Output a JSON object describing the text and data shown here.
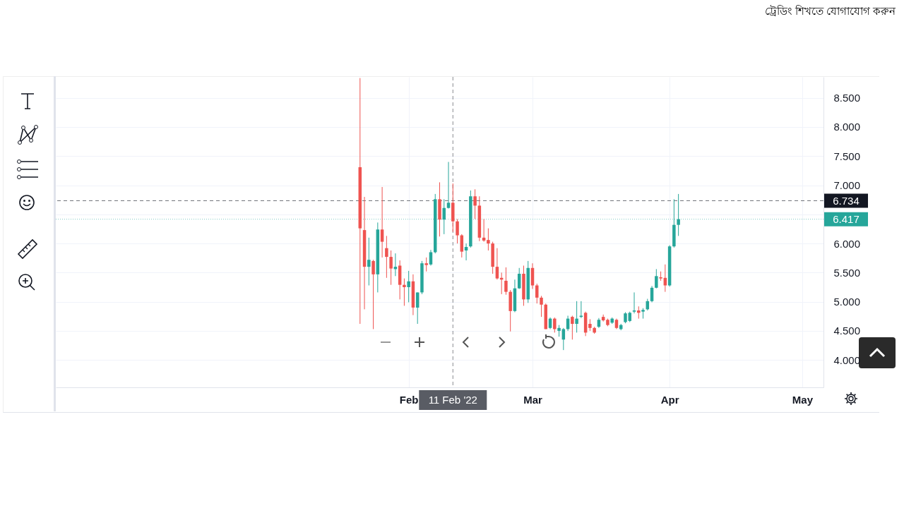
{
  "chart_data": {
    "type": "candlestick",
    "annotations": [
      "ট্রেডিং শিখতে যোগাযোগ করুন"
    ],
    "x": [
      "2022-01-21",
      "2022-01-22",
      "2022-01-23",
      "2022-01-24",
      "2022-01-25",
      "2022-01-26",
      "2022-01-27",
      "2022-01-28",
      "2022-01-29",
      "2022-01-30",
      "2022-01-31",
      "2022-02-01",
      "2022-02-02",
      "2022-02-03",
      "2022-02-04",
      "2022-02-05",
      "2022-02-06",
      "2022-02-07",
      "2022-02-08",
      "2022-02-09",
      "2022-02-10",
      "2022-02-11",
      "2022-02-12",
      "2022-02-13",
      "2022-02-14",
      "2022-02-15",
      "2022-02-16",
      "2022-02-17",
      "2022-02-18",
      "2022-02-19",
      "2022-02-20",
      "2022-02-21",
      "2022-02-22",
      "2022-02-23",
      "2022-02-24",
      "2022-02-25",
      "2022-02-26",
      "2022-02-27",
      "2022-02-28",
      "2022-03-01",
      "2022-03-02",
      "2022-03-03",
      "2022-03-04",
      "2022-03-05",
      "2022-03-06",
      "2022-03-07",
      "2022-03-08",
      "2022-03-09",
      "2022-03-10",
      "2022-03-11",
      "2022-03-12",
      "2022-03-13",
      "2022-03-14",
      "2022-03-15",
      "2022-03-16",
      "2022-03-17",
      "2022-03-18",
      "2022-03-19",
      "2022-03-20",
      "2022-03-21",
      "2022-03-22",
      "2022-03-23",
      "2022-03-24",
      "2022-03-25",
      "2022-03-26",
      "2022-03-27",
      "2022-03-28",
      "2022-03-29",
      "2022-03-30",
      "2022-03-31",
      "2022-04-01",
      "2022-04-02",
      "2022-04-03"
    ],
    "series": [
      {
        "ohlc": [
          [
            7.31,
            8.84,
            4.62,
            6.26
          ],
          [
            6.23,
            6.8,
            4.87,
            5.6
          ],
          [
            5.6,
            6.1,
            5.28,
            5.72
          ],
          [
            5.7,
            5.72,
            4.53,
            5.47
          ],
          [
            5.47,
            6.36,
            5.16,
            6.24
          ],
          [
            6.24,
            6.97,
            5.76,
            6.03
          ],
          [
            5.92,
            6.13,
            5.41,
            5.77
          ],
          [
            5.77,
            5.88,
            5.29,
            5.57
          ],
          [
            5.56,
            5.83,
            5.44,
            5.6
          ],
          [
            5.62,
            5.71,
            5.04,
            5.29
          ],
          [
            5.29,
            5.4,
            4.93,
            5.25
          ],
          [
            5.25,
            5.53,
            4.99,
            5.35
          ],
          [
            5.35,
            5.47,
            4.77,
            4.9
          ],
          [
            4.9,
            5.16,
            4.62,
            5.16
          ],
          [
            5.16,
            5.7,
            5.13,
            5.66
          ],
          [
            5.66,
            5.76,
            5.52,
            5.63
          ],
          [
            5.64,
            5.89,
            5.62,
            5.85
          ],
          [
            5.85,
            6.85,
            5.83,
            6.76
          ],
          [
            6.76,
            7.05,
            6.12,
            6.41
          ],
          [
            6.41,
            6.76,
            6.16,
            6.61
          ],
          [
            6.61,
            7.4,
            6.6,
            6.7
          ],
          [
            6.7,
            7.03,
            6.2,
            6.38
          ],
          [
            6.38,
            6.42,
            6.0,
            6.14
          ],
          [
            6.14,
            6.16,
            5.76,
            5.86
          ],
          [
            5.88,
            6.0,
            5.71,
            5.94
          ],
          [
            5.95,
            6.91,
            5.93,
            6.81
          ],
          [
            6.81,
            6.93,
            6.42,
            6.65
          ],
          [
            6.65,
            6.81,
            6.04,
            6.1
          ],
          [
            6.1,
            6.42,
            6.03,
            6.05
          ],
          [
            6.06,
            6.26,
            5.88,
            6.0
          ],
          [
            6.0,
            6.03,
            5.48,
            5.6
          ],
          [
            5.6,
            5.92,
            5.38,
            5.4
          ],
          [
            5.41,
            5.5,
            5.13,
            5.38
          ],
          [
            5.36,
            5.59,
            5.12,
            5.17
          ],
          [
            5.17,
            5.2,
            4.49,
            4.84
          ],
          [
            4.84,
            5.38,
            4.82,
            5.23
          ],
          [
            5.23,
            5.58,
            5.22,
            5.48
          ],
          [
            5.48,
            5.62,
            4.93,
            5.04
          ],
          [
            5.04,
            5.7,
            4.98,
            5.58
          ],
          [
            5.58,
            5.66,
            5.22,
            5.28
          ],
          [
            5.28,
            5.31,
            4.97,
            5.07
          ],
          [
            5.07,
            5.1,
            4.74,
            4.95
          ],
          [
            4.95,
            4.97,
            4.53,
            4.53
          ],
          [
            4.55,
            4.73,
            4.53,
            4.71
          ],
          [
            4.71,
            4.73,
            4.47,
            4.53
          ],
          [
            4.5,
            4.6,
            4.4,
            4.55
          ],
          [
            4.35,
            4.55,
            4.17,
            4.53
          ],
          [
            4.53,
            4.76,
            4.5,
            4.71
          ],
          [
            4.74,
            4.76,
            4.35,
            4.62
          ],
          [
            4.62,
            5.01,
            4.47,
            4.71
          ],
          [
            4.74,
            5.01,
            4.72,
            4.76
          ],
          [
            4.81,
            4.83,
            4.41,
            4.47
          ],
          [
            4.62,
            4.7,
            4.5,
            4.55
          ],
          [
            4.55,
            4.57,
            4.45,
            4.47
          ],
          [
            4.57,
            4.72,
            4.55,
            4.69
          ],
          [
            4.74,
            4.78,
            4.66,
            4.68
          ],
          [
            4.69,
            4.71,
            4.58,
            4.6
          ],
          [
            4.64,
            4.73,
            4.62,
            4.71
          ],
          [
            4.69,
            4.71,
            4.53,
            4.55
          ],
          [
            4.53,
            4.62,
            4.51,
            4.6
          ],
          [
            4.65,
            4.82,
            4.63,
            4.8
          ],
          [
            4.67,
            4.83,
            4.65,
            4.81
          ],
          [
            4.83,
            5.16,
            4.8,
            4.85
          ],
          [
            4.85,
            4.92,
            4.71,
            4.81
          ],
          [
            4.83,
            4.89,
            4.71,
            4.86
          ],
          [
            4.87,
            5.05,
            4.85,
            5.01
          ],
          [
            5.01,
            5.27,
            4.99,
            5.24
          ],
          [
            5.24,
            5.56,
            5.23,
            5.44
          ],
          [
            5.42,
            5.52,
            5.36,
            5.4
          ],
          [
            5.41,
            5.64,
            5.17,
            5.28
          ],
          [
            5.28,
            5.97,
            5.26,
            5.95
          ],
          [
            5.95,
            6.76,
            5.93,
            6.32
          ],
          [
            6.32,
            6.85,
            6.13,
            6.417
          ]
        ],
        "colors": [
          "#ef5350",
          "#ef5350",
          "#26a69a",
          "#ef5350",
          "#26a69a",
          "#ef5350",
          "#ef5350",
          "#ef5350",
          "#26a69a",
          "#ef5350",
          "#ef5350",
          "#26a69a",
          "#ef5350",
          "#26a69a",
          "#26a69a",
          "#ef5350",
          "#26a69a",
          "#26a69a",
          "#ef5350",
          "#26a69a",
          "#26a69a",
          "#ef5350",
          "#ef5350",
          "#ef5350",
          "#26a69a",
          "#26a69a",
          "#ef5350",
          "#ef5350",
          "#ef5350",
          "#ef5350",
          "#ef5350",
          "#ef5350",
          "#ef5350",
          "#ef5350",
          "#ef5350",
          "#26a69a",
          "#26a69a",
          "#ef5350",
          "#26a69a",
          "#ef5350",
          "#ef5350",
          "#ef5350",
          "#ef5350",
          "#26a69a",
          "#ef5350",
          "#26a69a",
          "#26a69a",
          "#26a69a",
          "#ef5350",
          "#26a69a",
          "#26a69a",
          "#ef5350",
          "#ef5350",
          "#ef5350",
          "#26a69a",
          "#ef5350",
          "#ef5350",
          "#26a69a",
          "#ef5350",
          "#26a69a",
          "#26a69a",
          "#26a69a",
          "#26a69a",
          "#ef5350",
          "#26a69a",
          "#26a69a",
          "#26a69a",
          "#26a69a",
          "#ef5350",
          "#ef5350",
          "#26a69a",
          "#26a69a",
          "#26a69a"
        ]
      }
    ],
    "xlim": [
      "2021-11-14",
      "2022-05-05"
    ],
    "xticks": [
      {
        "value": "2022-02-01",
        "label": "Feb"
      },
      {
        "value": "2022-03-01",
        "label": "Mar"
      },
      {
        "value": "2022-04-01",
        "label": "Apr"
      },
      {
        "value": "2022-05-01",
        "label": "May"
      }
    ],
    "ylim": [
      3.53,
      8.86
    ],
    "yticks": [
      {
        "value": 4,
        "label": "4.000"
      },
      {
        "value": 4.5,
        "label": "4.500"
      },
      {
        "value": 5,
        "label": "5.000"
      },
      {
        "value": 5.5,
        "label": "5.500"
      },
      {
        "value": 6,
        "label": "6.000"
      },
      {
        "value": 6.5,
        "label": null
      },
      {
        "value": 7,
        "label": "7.000"
      },
      {
        "value": 7.5,
        "label": "7.500"
      },
      {
        "value": 8,
        "label": "8.000"
      },
      {
        "value": 8.5,
        "label": "8.500"
      }
    ],
    "grid": true,
    "ref_lines": [
      {
        "axis": "y",
        "value": 6.734,
        "label": "6.734",
        "color": "#131722",
        "line_style": "dashed"
      },
      {
        "axis": "y",
        "value": 6.417,
        "label": "6.417",
        "color": "#26a69a",
        "line_style": "dotted"
      },
      {
        "axis": "x",
        "value": "2022-02-11",
        "label": "11 Feb '22",
        "color": "#131722",
        "line_style": "dashed"
      }
    ]
  }
}
